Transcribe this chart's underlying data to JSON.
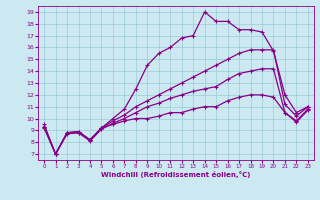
{
  "xlabel": "Windchill (Refroidissement éolien,°C)",
  "background_color": "#cce8f0",
  "grid_color": "#99ccd9",
  "line_color": "#880088",
  "xlim": [
    -0.5,
    23.5
  ],
  "ylim": [
    6.5,
    19.5
  ],
  "xticks": [
    0,
    1,
    2,
    3,
    4,
    5,
    6,
    7,
    8,
    9,
    10,
    11,
    12,
    13,
    14,
    15,
    16,
    17,
    18,
    19,
    20,
    21,
    22,
    23
  ],
  "yticks": [
    7,
    8,
    9,
    10,
    11,
    12,
    13,
    14,
    15,
    16,
    17,
    18,
    19
  ],
  "line_zigzag": {
    "x": [
      0,
      1,
      2,
      3,
      4,
      5,
      6,
      7,
      8,
      9,
      10,
      11,
      12,
      13,
      14,
      15,
      16,
      17,
      18,
      19,
      20,
      21,
      22,
      23
    ],
    "y": [
      9.5,
      7.0,
      8.8,
      8.8,
      8.2,
      9.2,
      9.5,
      9.8,
      10.0,
      10.0,
      10.2,
      10.5,
      10.5,
      10.8,
      11.0,
      11.0,
      11.5,
      11.8,
      12.0,
      12.0,
      11.8,
      10.5,
      9.8,
      10.8
    ]
  },
  "line_gradual1": {
    "x": [
      0,
      1,
      2,
      3,
      4,
      5,
      6,
      7,
      8,
      9,
      10,
      11,
      12,
      13,
      14,
      15,
      16,
      17,
      18,
      19,
      20,
      21,
      22,
      23
    ],
    "y": [
      9.2,
      7.0,
      8.7,
      8.8,
      8.1,
      9.1,
      9.6,
      10.0,
      10.5,
      11.0,
      11.3,
      11.7,
      12.0,
      12.3,
      12.5,
      12.7,
      13.3,
      13.8,
      14.0,
      14.2,
      14.2,
      10.5,
      9.7,
      10.7
    ]
  },
  "line_gradual2": {
    "x": [
      0,
      1,
      2,
      3,
      4,
      5,
      6,
      7,
      8,
      9,
      10,
      11,
      12,
      13,
      14,
      15,
      16,
      17,
      18,
      19,
      20,
      21,
      22,
      23
    ],
    "y": [
      9.3,
      7.0,
      8.8,
      8.9,
      8.2,
      9.2,
      9.8,
      10.3,
      11.0,
      11.5,
      12.0,
      12.5,
      13.0,
      13.5,
      14.0,
      14.5,
      15.0,
      15.5,
      15.8,
      15.8,
      15.8,
      11.2,
      10.2,
      11.0
    ]
  },
  "line_peak": {
    "x": [
      0,
      1,
      2,
      3,
      4,
      5,
      6,
      7,
      8,
      9,
      10,
      11,
      12,
      13,
      14,
      15,
      16,
      17,
      18,
      19,
      20,
      21,
      22,
      23
    ],
    "y": [
      9.3,
      7.0,
      8.8,
      8.9,
      8.2,
      9.2,
      10.0,
      10.8,
      12.5,
      14.5,
      15.5,
      16.0,
      16.8,
      17.0,
      19.0,
      18.2,
      18.2,
      17.5,
      17.5,
      17.3,
      15.7,
      12.0,
      10.5,
      11.0
    ]
  }
}
